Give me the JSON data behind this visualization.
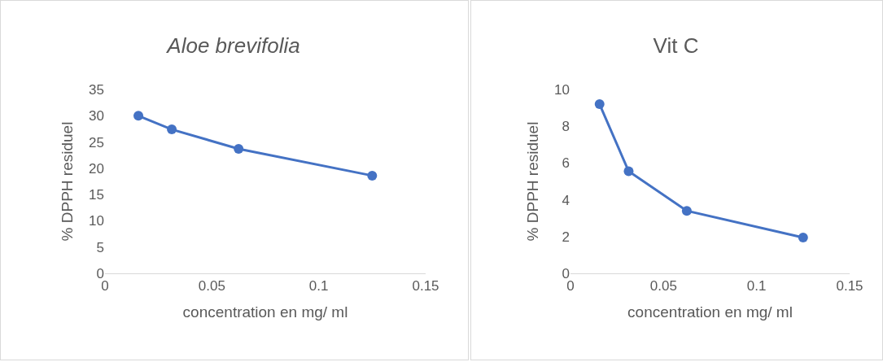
{
  "chart_data": [
    {
      "type": "line",
      "title": "Aloe brevifolia",
      "xlabel": "concentration en mg/ ml",
      "ylabel": "% DPPH residuel",
      "x": [
        0.015625,
        0.03125,
        0.0625,
        0.125
      ],
      "series": [
        {
          "color": "#4472c4",
          "values": [
            30.0,
            27.4,
            23.7,
            18.6
          ]
        }
      ],
      "xlim": [
        0,
        0.15
      ],
      "xticks": [
        0,
        0.05,
        0.1,
        0.15
      ],
      "ylim": [
        0,
        35
      ],
      "yticks": [
        0,
        5,
        10,
        15,
        20,
        25,
        30,
        35
      ],
      "grid": false,
      "legend": false,
      "marker": "circle",
      "line_style": "solid"
    },
    {
      "type": "line",
      "title": "Vit C",
      "xlabel": "concentration en mg/ ml",
      "ylabel": "% DPPH residuel",
      "x": [
        0.015625,
        0.03125,
        0.0625,
        0.125
      ],
      "series": [
        {
          "color": "#4472c4",
          "values": [
            9.2,
            5.55,
            3.4,
            1.95
          ]
        }
      ],
      "xlim": [
        0,
        0.15
      ],
      "xticks": [
        0,
        0.05,
        0.1,
        0.15
      ],
      "ylim": [
        0,
        10
      ],
      "yticks": [
        0,
        2,
        4,
        6,
        8,
        10
      ],
      "grid": false,
      "legend": false,
      "marker": "circle",
      "line_style": "solid"
    }
  ]
}
